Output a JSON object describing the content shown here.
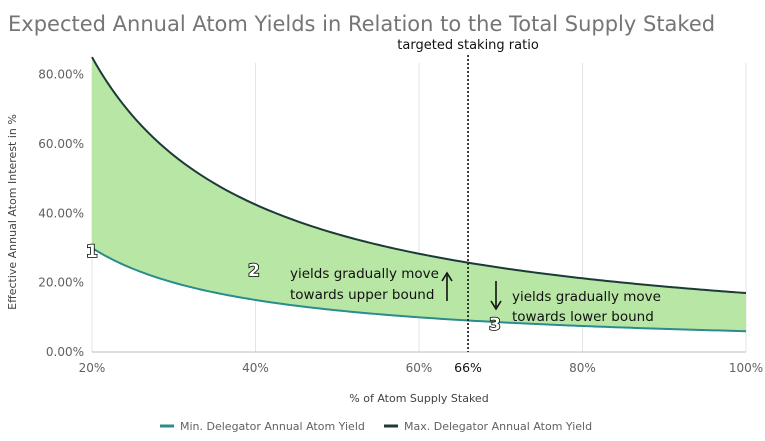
{
  "chart_data": {
    "type": "area",
    "title": "Expected Annual Atom Yields in Relation to the Total Supply Staked",
    "xlabel": "% of Atom Supply Staked",
    "ylabel": "Effective Annual Atom Interest in %",
    "xlim": [
      20,
      100
    ],
    "ylim": [
      0,
      85
    ],
    "x_ticks": [
      "20%",
      "40%",
      "60%",
      "80%",
      "100%"
    ],
    "y_ticks": [
      "0.00%",
      "20.00%",
      "40.00%",
      "60.00%",
      "80.00%"
    ],
    "grid": "vertical",
    "legend_position": "bottom",
    "series": [
      {
        "name": "Min. Delegator Annual Atom Yield",
        "color": "#2a8c8c",
        "x": [
          20,
          25,
          30,
          35,
          40,
          45,
          50,
          55,
          60,
          65,
          70,
          75,
          80,
          85,
          90,
          95,
          100
        ],
        "y": [
          30.0,
          24.0,
          20.0,
          17.1,
          15.0,
          13.3,
          12.0,
          10.9,
          10.0,
          9.2,
          8.6,
          8.0,
          7.5,
          7.1,
          6.7,
          6.3,
          6.0
        ]
      },
      {
        "name": "Max. Delegator Annual Atom Yield",
        "color": "#1b3a38",
        "x": [
          20,
          25,
          30,
          35,
          40,
          45,
          50,
          55,
          60,
          65,
          70,
          75,
          80,
          85,
          90,
          95,
          100
        ],
        "y": [
          85.0,
          68.0,
          56.7,
          48.6,
          42.5,
          37.8,
          34.0,
          30.9,
          28.3,
          26.2,
          24.3,
          22.7,
          21.3,
          20.0,
          18.9,
          17.9,
          17.0
        ]
      }
    ],
    "fill_between_color": "#b8e6a4",
    "reference_line": {
      "x": 66,
      "label": "targeted staking ratio",
      "tick_label": "66%"
    },
    "annotations": [
      {
        "marker": "1"
      },
      {
        "marker": "2",
        "text_lines": [
          "yields gradually move",
          "towards upper bound"
        ],
        "arrow": "up"
      },
      {
        "marker": "3",
        "text_lines": [
          "yields gradually move",
          "towards lower bound"
        ],
        "arrow": "down"
      }
    ]
  }
}
